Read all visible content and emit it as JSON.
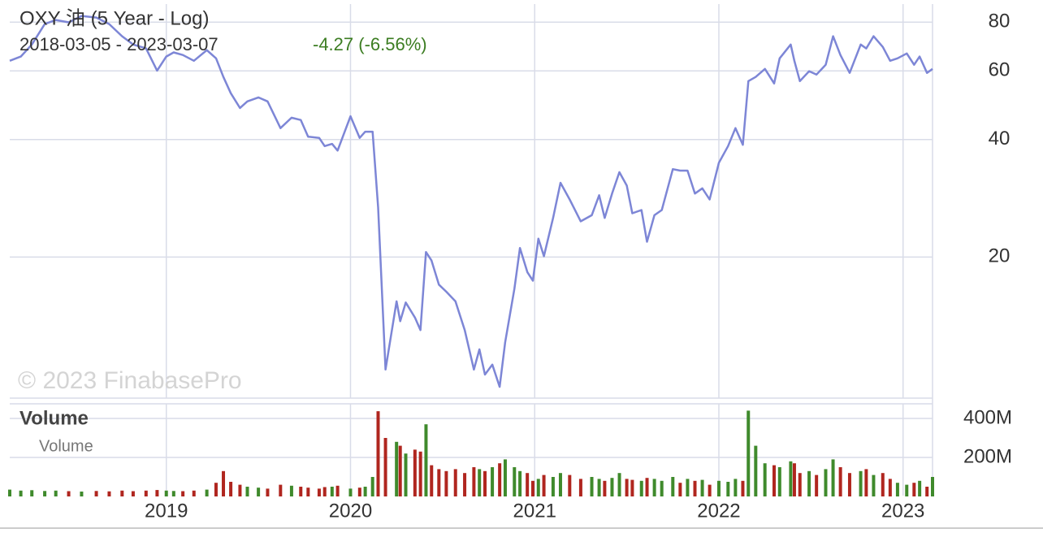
{
  "chart_data": [
    {
      "type": "line",
      "title": "OXY 油 (5 Year - Log)",
      "subtitle": "2018-03-05 - 2023-03-07",
      "change": "-4.27 (-6.56%)",
      "change_color": "#3c7d22",
      "watermark": "© 2023 FinabasePro",
      "log_scale": true,
      "grid": true,
      "color": "#7d86d6",
      "xlim": [
        2018.15,
        2023.16
      ],
      "xticks": [
        2019,
        2020,
        2021,
        2022,
        2023
      ],
      "ylim": [
        8.7,
        89
      ],
      "yticks": [
        20,
        40,
        60,
        80
      ],
      "x": [
        2018.15,
        2018.21,
        2018.27,
        2018.34,
        2018.4,
        2018.47,
        2018.54,
        2018.62,
        2018.69,
        2018.76,
        2018.82,
        2018.89,
        2018.95,
        2019.0,
        2019.04,
        2019.09,
        2019.15,
        2019.22,
        2019.27,
        2019.31,
        2019.35,
        2019.4,
        2019.44,
        2019.5,
        2019.55,
        2019.62,
        2019.68,
        2019.73,
        2019.77,
        2019.83,
        2019.86,
        2019.9,
        2019.93,
        2020.0,
        2020.05,
        2020.08,
        2020.12,
        2020.15,
        2020.19,
        2020.25,
        2020.27,
        2020.3,
        2020.35,
        2020.38,
        2020.41,
        2020.44,
        2020.48,
        2020.52,
        2020.57,
        2020.62,
        2020.67,
        2020.7,
        2020.73,
        2020.77,
        2020.81,
        2020.84,
        2020.89,
        2020.92,
        2020.96,
        2020.99,
        2021.02,
        2021.05,
        2021.1,
        2021.14,
        2021.19,
        2021.25,
        2021.31,
        2021.35,
        2021.38,
        2021.42,
        2021.46,
        2021.5,
        2021.53,
        2021.58,
        2021.61,
        2021.65,
        2021.69,
        2021.75,
        2021.79,
        2021.83,
        2021.87,
        2021.91,
        2021.95,
        2022.0,
        2022.05,
        2022.09,
        2022.13,
        2022.16,
        2022.2,
        2022.25,
        2022.3,
        2022.33,
        2022.39,
        2022.41,
        2022.44,
        2022.49,
        2022.53,
        2022.58,
        2022.62,
        2022.66,
        2022.71,
        2022.77,
        2022.8,
        2022.84,
        2022.89,
        2022.93,
        2022.97,
        2023.02,
        2023.06,
        2023.09,
        2023.13,
        2023.16
      ],
      "values": [
        63.7,
        65.3,
        70.1,
        79.1,
        81.0,
        79.9,
        83.0,
        82.2,
        79.1,
        73.6,
        70.1,
        68.5,
        60.1,
        65.3,
        66.9,
        65.9,
        63.7,
        67.8,
        64.6,
        57.9,
        52.6,
        48.2,
        50.1,
        51.3,
        50.1,
        42.8,
        45.5,
        44.9,
        40.7,
        40.4,
        38.5,
        39.0,
        37.5,
        45.9,
        40.4,
        41.9,
        41.9,
        26.8,
        10.3,
        15.4,
        13.7,
        15.3,
        14.0,
        13.0,
        20.6,
        19.6,
        17.0,
        16.3,
        15.4,
        13.0,
        10.3,
        11.6,
        10.0,
        10.6,
        9.3,
        12.1,
        16.6,
        21.1,
        18.3,
        17.4,
        22.3,
        20.1,
        25.2,
        31.0,
        28.1,
        24.7,
        25.6,
        28.8,
        25.2,
        29.1,
        33.0,
        30.5,
        25.9,
        26.4,
        21.9,
        25.6,
        26.4,
        33.6,
        33.3,
        33.3,
        29.1,
        30.0,
        28.1,
        34.9,
        38.5,
        42.8,
        38.8,
        56.5,
        57.9,
        60.7,
        55.7,
        64.6,
        70.1,
        63.7,
        56.5,
        59.9,
        58.7,
        62.2,
        73.6,
        65.9,
        59.3,
        70.1,
        68.5,
        73.6,
        69.1,
        63.7,
        64.6,
        66.5,
        62.2,
        65.3,
        59.3,
        60.7
      ]
    },
    {
      "type": "volume",
      "title": "Volume",
      "grid": true,
      "up_color": "#3f8a2c",
      "down_color": "#b0261f",
      "xlim": [
        2018.15,
        2023.16
      ],
      "xticks": [
        2019,
        2020,
        2021,
        2022,
        2023
      ],
      "ylim": [
        0,
        475
      ],
      "yticks": [
        {
          "value": 200,
          "label": "200M"
        },
        {
          "value": 400,
          "label": "400M"
        }
      ],
      "x": [
        2018.15,
        2018.21,
        2018.27,
        2018.34,
        2018.4,
        2018.47,
        2018.54,
        2018.62,
        2018.69,
        2018.76,
        2018.82,
        2018.89,
        2018.95,
        2019.0,
        2019.04,
        2019.09,
        2019.15,
        2019.22,
        2019.27,
        2019.31,
        2019.35,
        2019.4,
        2019.44,
        2019.5,
        2019.55,
        2019.62,
        2019.68,
        2019.73,
        2019.77,
        2019.83,
        2019.86,
        2019.9,
        2019.93,
        2020.0,
        2020.05,
        2020.08,
        2020.12,
        2020.15,
        2020.19,
        2020.25,
        2020.27,
        2020.3,
        2020.35,
        2020.38,
        2020.41,
        2020.44,
        2020.48,
        2020.52,
        2020.57,
        2020.62,
        2020.67,
        2020.7,
        2020.73,
        2020.77,
        2020.81,
        2020.84,
        2020.89,
        2020.92,
        2020.96,
        2020.99,
        2021.02,
        2021.05,
        2021.1,
        2021.14,
        2021.19,
        2021.25,
        2021.31,
        2021.35,
        2021.38,
        2021.42,
        2021.46,
        2021.5,
        2021.53,
        2021.58,
        2021.61,
        2021.65,
        2021.69,
        2021.75,
        2021.79,
        2021.83,
        2021.87,
        2021.91,
        2021.95,
        2022.0,
        2022.05,
        2022.09,
        2022.13,
        2022.16,
        2022.2,
        2022.25,
        2022.3,
        2022.33,
        2022.39,
        2022.41,
        2022.44,
        2022.49,
        2022.53,
        2022.58,
        2022.62,
        2022.66,
        2022.71,
        2022.77,
        2022.8,
        2022.84,
        2022.89,
        2022.93,
        2022.97,
        2023.02,
        2023.06,
        2023.09,
        2023.13,
        2023.16
      ],
      "series": [
        {
          "name": "Volume",
          "values": [
            35,
            30,
            32,
            28,
            30,
            27,
            25,
            28,
            26,
            30,
            27,
            30,
            33,
            30,
            28,
            27,
            30,
            35,
            70,
            130,
            75,
            60,
            50,
            45,
            40,
            60,
            55,
            50,
            45,
            40,
            48,
            50,
            55,
            40,
            45,
            50,
            100,
            437,
            300,
            280,
            260,
            220,
            240,
            230,
            370,
            160,
            140,
            130,
            140,
            120,
            150,
            140,
            130,
            150,
            170,
            190,
            150,
            130,
            120,
            80,
            90,
            110,
            100,
            120,
            110,
            90,
            100,
            90,
            80,
            95,
            120,
            90,
            85,
            80,
            95,
            90,
            80,
            100,
            70,
            90,
            80,
            85,
            60,
            80,
            75,
            90,
            80,
            440,
            260,
            170,
            160,
            150,
            180,
            170,
            120,
            130,
            110,
            140,
            190,
            150,
            120,
            130,
            140,
            110,
            120,
            90,
            70,
            60,
            70,
            80,
            50,
            100
          ]
        }
      ]
    }
  ]
}
